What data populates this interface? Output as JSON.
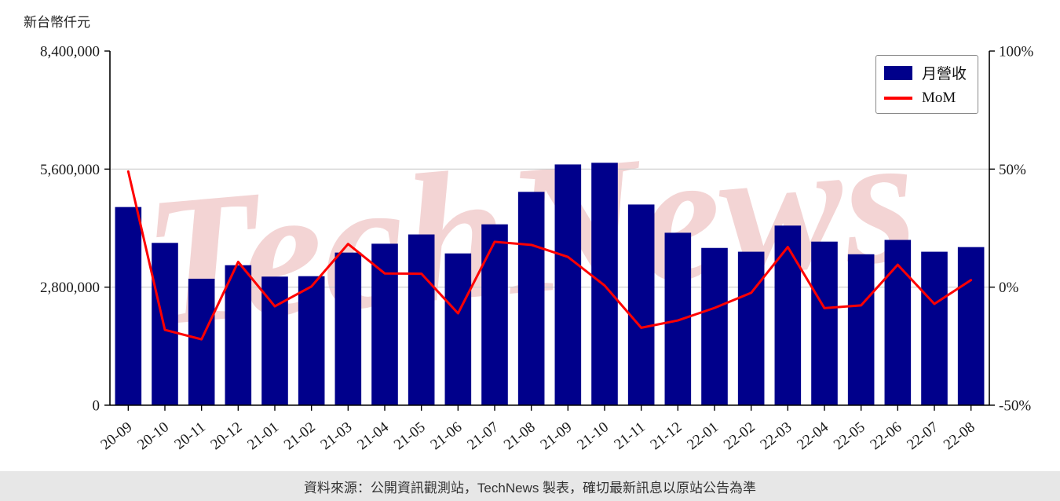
{
  "axis_title": "新台幣仟元",
  "watermark": "TechNews",
  "legend": {
    "bar_label": "月營收",
    "line_label": "MoM"
  },
  "footer": {
    "text": "資料來源：公開資訊觀測站，TechNews 製表，確切最新訊息以原站公告為準"
  },
  "colors": {
    "bar": "#00008b",
    "line": "#ff0000",
    "grid": "#cccccc",
    "axis": "#000000",
    "tick_text": "#1a1a1a",
    "watermark": "rgba(228,160,160,0.45)",
    "footer_bg": "#e7e7e7"
  },
  "chart_data": {
    "type": "bar+line",
    "title": "",
    "categories": [
      "20-09",
      "20-10",
      "20-11",
      "20-12",
      "21-01",
      "21-02",
      "21-03",
      "21-04",
      "21-05",
      "21-06",
      "21-07",
      "21-08",
      "21-09",
      "21-10",
      "21-11",
      "21-12",
      "22-01",
      "22-02",
      "22-03",
      "22-04",
      "22-05",
      "22-06",
      "22-07",
      "22-08"
    ],
    "series": [
      {
        "name": "月營收",
        "type": "bar",
        "axis": "left",
        "values": [
          4700000,
          3850000,
          3000000,
          3320000,
          3050000,
          3060000,
          3620000,
          3830000,
          4050000,
          3600000,
          4290000,
          5060000,
          5710000,
          5750000,
          4760000,
          4090000,
          3730000,
          3640000,
          4260000,
          3880000,
          3580000,
          3920000,
          3640000,
          3750000
        ]
      },
      {
        "name": "MoM",
        "type": "line",
        "axis": "right",
        "values": [
          49,
          -18.1,
          -22.1,
          10.7,
          -8.1,
          0.3,
          18.3,
          5.8,
          5.7,
          -11.1,
          19.2,
          17.9,
          12.8,
          0.7,
          -17.2,
          -14.1,
          -8.8,
          -2.4,
          17.0,
          -8.9,
          -7.7,
          9.5,
          -7.1,
          3.0
        ]
      }
    ],
    "left_axis": {
      "label": "新台幣仟元",
      "range": [
        0,
        8400000
      ],
      "ticks": [
        0,
        2800000,
        5600000,
        8400000
      ]
    },
    "right_axis": {
      "unit": "%",
      "range": [
        -50,
        100
      ],
      "ticks": [
        -50,
        0,
        50,
        100
      ]
    },
    "legend_position": "top-right",
    "grid": "horizontal"
  }
}
